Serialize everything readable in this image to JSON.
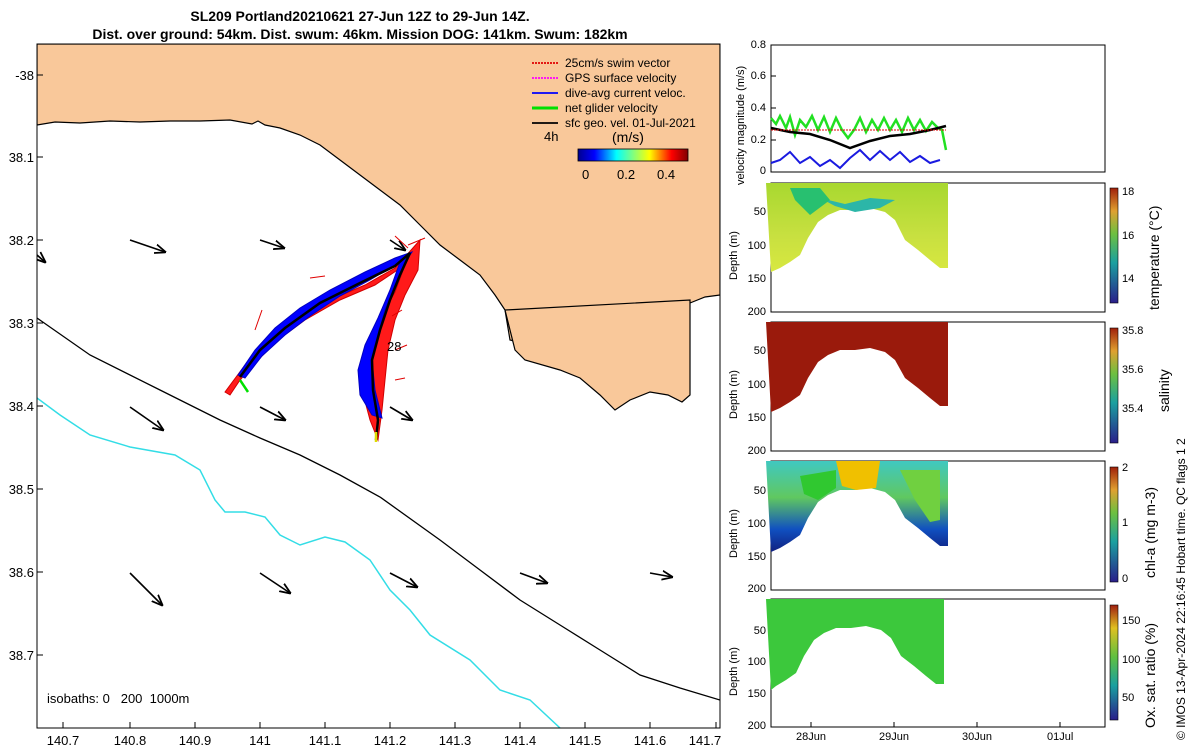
{
  "title": {
    "line1": "SL209 Portland20210621 27-Jun 12Z to 29-Jun 14Z.",
    "line2": "Dist. over ground: 54km. Dist. swum: 46km. Mission DOG: 141km. Swum: 182km"
  },
  "map": {
    "lat_ticks": [
      "-38",
      "38.1",
      "38.2",
      "38.3",
      "38.4",
      "38.5",
      "38.6",
      "38.7"
    ],
    "lon_ticks": [
      "140.7",
      "140.8",
      "140.9",
      "141",
      "141.1",
      "141.2",
      "141.3",
      "141.4",
      "141.5",
      "141.6",
      "141.7"
    ],
    "legend": [
      {
        "label": "25cm/s swim vector",
        "color": "#e00000"
      },
      {
        "label": "GPS surface velocity",
        "color": "#ff00ff"
      },
      {
        "label": "dive-avg current veloc.",
        "color": "#0000ff"
      },
      {
        "label": "net glider velocity",
        "color": "#00e000"
      },
      {
        "label": "sfc geo. vel. 01-Jul-2021",
        "color": "#000000"
      }
    ],
    "time_label": "4h",
    "colorbar": {
      "unit": "(m/s)",
      "ticks": [
        "0",
        "0.2",
        "0.4"
      ]
    },
    "track_label": "28",
    "isobaths_label": "isobaths: 0   200  1000m",
    "land_color": "#f9c89a",
    "isobath_200_color": "#000000",
    "isobath_1000_color": "#33dde6"
  },
  "panels": {
    "velocity": {
      "ylabel": "velocity magnitude (m/s)",
      "yticks": [
        "0.8",
        "0.6",
        "0.4",
        "0.2",
        "0"
      ]
    },
    "temperature": {
      "ylabel": "Depth (m)",
      "yticks": [
        "50",
        "100",
        "150",
        "200"
      ],
      "cbar_label": "temperature (°C)",
      "cbar_ticks": [
        "18",
        "16",
        "14"
      ]
    },
    "salinity": {
      "ylabel": "Depth (m)",
      "yticks": [
        "50",
        "100",
        "150",
        "200"
      ],
      "cbar_label": "salinity",
      "cbar_ticks": [
        "35.8",
        "35.6",
        "35.4"
      ]
    },
    "chla": {
      "ylabel": "Depth (m)",
      "yticks": [
        "50",
        "100",
        "150",
        "200"
      ],
      "cbar_label": "chl-a (mg m-3)",
      "cbar_ticks": [
        "2",
        "1",
        "0"
      ]
    },
    "oxygen": {
      "ylabel": "Depth (m)",
      "yticks": [
        "50",
        "100",
        "150",
        "200"
      ],
      "cbar_label": "Ox. sat. ratio (%)",
      "cbar_ticks": [
        "150",
        "100",
        "50"
      ]
    },
    "xticks": [
      "28Jun",
      "29Jun",
      "30Jun",
      "01Jul"
    ]
  },
  "footer": {
    "side_note": "© IMOS 13-Apr-2024 22:16:45 Hobart time. QC flags 1  2"
  }
}
